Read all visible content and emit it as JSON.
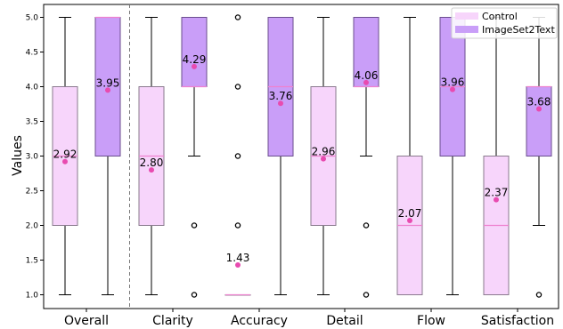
{
  "chart_data": {
    "type": "box",
    "ylabel": "Values",
    "ylim": [
      0.8,
      5.1
    ],
    "yticks": [
      "1.0",
      "1.5",
      "2.0",
      "2.5",
      "3.0",
      "3.5",
      "4.0",
      "4.5",
      "5.0"
    ],
    "categories": [
      "Overall",
      "Clarity",
      "Accuracy",
      "Detail",
      "Flow",
      "Satisfaction"
    ],
    "separator_after": "Overall",
    "legend": {
      "position": "top-right",
      "entries": [
        "Control",
        "ImageSet2Text"
      ]
    },
    "colors": {
      "Control": {
        "fill": "#f7d5fb",
        "edge": "#8a7a8e"
      },
      "ImageSet2Text": {
        "fill": "#c99ef8",
        "edge": "#6b4e8e"
      },
      "median": "#ee82cf",
      "mean": "#e84bb0"
    },
    "series": [
      {
        "name": "Control",
        "boxes": [
          {
            "category": "Overall",
            "whislo": 1.0,
            "q1": 2.0,
            "med": 3.0,
            "q3": 4.0,
            "whishi": 5.0,
            "mean": 2.92,
            "mean_label": "2.92",
            "fliers": []
          },
          {
            "category": "Clarity",
            "whislo": 1.0,
            "q1": 2.0,
            "med": 3.0,
            "q3": 4.0,
            "whishi": 5.0,
            "mean": 2.8,
            "mean_label": "2.80",
            "fliers": []
          },
          {
            "category": "Accuracy",
            "whislo": 1.0,
            "q1": 1.0,
            "med": 1.0,
            "q3": 1.0,
            "whishi": 1.0,
            "mean": 1.43,
            "mean_label": "1.43",
            "fliers": [
              2.0,
              3.0,
              4.0,
              5.0
            ]
          },
          {
            "category": "Detail",
            "whislo": 1.0,
            "q1": 2.0,
            "med": 3.0,
            "q3": 4.0,
            "whishi": 5.0,
            "mean": 2.96,
            "mean_label": "2.96",
            "fliers": []
          },
          {
            "category": "Flow",
            "whislo": 1.0,
            "q1": 1.0,
            "med": 2.0,
            "q3": 3.0,
            "whishi": 5.0,
            "mean": 2.07,
            "mean_label": "2.07",
            "fliers": []
          },
          {
            "category": "Satisfaction",
            "whislo": 1.0,
            "q1": 1.0,
            "med": 2.0,
            "q3": 3.0,
            "whishi": 5.0,
            "mean": 2.37,
            "mean_label": "2.37",
            "fliers": []
          }
        ]
      },
      {
        "name": "ImageSet2Text",
        "boxes": [
          {
            "category": "Overall",
            "whislo": 1.0,
            "q1": 3.0,
            "med": 5.0,
            "q3": 5.0,
            "whishi": 5.0,
            "mean": 3.95,
            "mean_label": "3.95",
            "fliers": []
          },
          {
            "category": "Clarity",
            "whislo": 3.0,
            "q1": 4.0,
            "med": 4.0,
            "q3": 5.0,
            "whishi": 5.0,
            "mean": 4.29,
            "mean_label": "4.29",
            "fliers": [
              1.0,
              2.0
            ]
          },
          {
            "category": "Accuracy",
            "whislo": 1.0,
            "q1": 3.0,
            "med": 4.0,
            "q3": 5.0,
            "whishi": 5.0,
            "mean": 3.76,
            "mean_label": "3.76",
            "fliers": []
          },
          {
            "category": "Detail",
            "whislo": 3.0,
            "q1": 4.0,
            "med": 4.0,
            "q3": 5.0,
            "whishi": 5.0,
            "mean": 4.06,
            "mean_label": "4.06",
            "fliers": [
              1.0,
              2.0
            ]
          },
          {
            "category": "Flow",
            "whislo": 1.0,
            "q1": 3.0,
            "med": 4.0,
            "q3": 5.0,
            "whishi": 5.0,
            "mean": 3.96,
            "mean_label": "3.96",
            "fliers": []
          },
          {
            "category": "Satisfaction",
            "whislo": 2.0,
            "q1": 3.0,
            "med": 4.0,
            "q3": 4.0,
            "whishi": 5.0,
            "mean": 3.68,
            "mean_label": "3.68",
            "fliers": [
              1.0
            ]
          }
        ]
      }
    ]
  }
}
